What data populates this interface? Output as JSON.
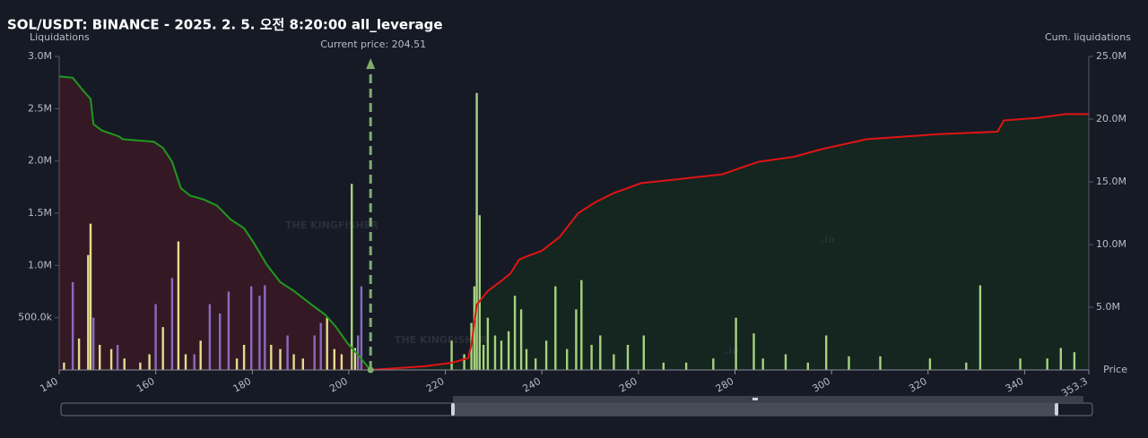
{
  "chart_data": {
    "type": "bar",
    "title": "SOL/USDT: BINANCE - 2025. 2. 5. 오전 8:20:00 all_leverage",
    "y_label": "Liquidations",
    "y2_label": "Cum. liquidations",
    "x_label": "Price",
    "watermark": "THE KINGFISHER",
    "watermark_suffix": ".io",
    "current_price": {
      "value": 204.51,
      "label": "Current price: 204.51"
    },
    "xlim": [
      140,
      353.3
    ],
    "xticks": [
      140,
      160,
      180,
      200,
      220,
      240,
      260,
      280,
      300,
      320,
      340,
      353.3
    ],
    "ylim": [
      0,
      3000000
    ],
    "yticks": [
      {
        "value": 500000,
        "label": "500.0k"
      },
      {
        "value": 1000000,
        "label": "1.0M"
      },
      {
        "value": 1500000,
        "label": "1.5M"
      },
      {
        "value": 2000000,
        "label": "2.0M"
      },
      {
        "value": 2500000,
        "label": "2.5M"
      },
      {
        "value": 3000000,
        "label": "3.0M"
      }
    ],
    "y2lim": [
      0,
      25000000
    ],
    "y2ticks": [
      {
        "value": 5000000,
        "label": "5.0M"
      },
      {
        "value": 10000000,
        "label": "10.0M"
      },
      {
        "value": 15000000,
        "label": "15.0M"
      },
      {
        "value": 20000000,
        "label": "20.0M"
      },
      {
        "value": 25000000,
        "label": "25.0M"
      }
    ],
    "grid": false,
    "series": [
      {
        "color": "#e3dd8c",
        "x": [
          141,
          144.1,
          146,
          146.5,
          148.4,
          150.8,
          153.5,
          156.8,
          158.7,
          161.5,
          164.7,
          166.2,
          169.3,
          176.8,
          178.3,
          183.9,
          185.8,
          188.6,
          190.5,
          195.5,
          197,
          198.5,
          201.3
        ],
        "values": [
          70000,
          300000,
          1100000,
          1400000,
          240000,
          200000,
          110000,
          70000,
          150000,
          410000,
          1230000,
          150000,
          280000,
          110000,
          240000,
          240000,
          200000,
          150000,
          110000,
          500000,
          200000,
          150000,
          210000
        ]
      },
      {
        "color": "#8a6bbd",
        "x": [
          142.8,
          147.1,
          152.1,
          160,
          163.4,
          168,
          171.2,
          173.3,
          175.1,
          179.8,
          181.5,
          182.6,
          187.3,
          192.9,
          194.2,
          201.9,
          202.6
        ],
        "values": [
          840000,
          500000,
          240000,
          630000,
          880000,
          150000,
          630000,
          540000,
          750000,
          800000,
          710000,
          810000,
          330000,
          330000,
          450000,
          330000,
          800000
        ]
      },
      {
        "color": "#a6d27e",
        "x": [
          200.6,
          221.3,
          223.9,
          225.4,
          226,
          226.5,
          227.1,
          227.9,
          228.8,
          230.3,
          231.6,
          233.1,
          234.4,
          235.7,
          236.8,
          238.7,
          240.9,
          242.8,
          245.2,
          247.1,
          248.2,
          250.3,
          252.1,
          254.9,
          257.8,
          261.1,
          265.2,
          269.9,
          275.5,
          280.2,
          283.9,
          285.8,
          290.5,
          295.1,
          298.9,
          303.6,
          310.1,
          320.4,
          327.9,
          330.8,
          339.1,
          344.7,
          347.5,
          350.3
        ],
        "values": [
          1780000,
          280000,
          150000,
          450000,
          800000,
          2650000,
          1480000,
          240000,
          500000,
          330000,
          280000,
          370000,
          710000,
          580000,
          200000,
          110000,
          280000,
          800000,
          200000,
          580000,
          860000,
          240000,
          330000,
          150000,
          240000,
          330000,
          70000,
          70000,
          110000,
          500000,
          350000,
          110000,
          150000,
          70000,
          330000,
          130000,
          130000,
          110000,
          70000,
          810000,
          110000,
          110000,
          210000,
          170000
        ]
      },
      {
        "type": "line",
        "axis": "y2",
        "color": "#1e9a1e",
        "fill": "#3a1a24",
        "x": [
          140,
          142.8,
          144.7,
          146.5,
          147.1,
          148.8,
          150.3,
          152.5,
          153.1,
          159.6,
          161.5,
          163.4,
          165.2,
          167.1,
          169.9,
          172.7,
          175.5,
          178.3,
          180.2,
          183,
          185.8,
          188.6,
          192.3,
          195.1,
          197.4,
          199.8,
          201.7,
          203.6,
          204.51
        ],
        "values": [
          23400000,
          23300000,
          22400000,
          21600000,
          19600000,
          19100000,
          18900000,
          18600000,
          18400000,
          18200000,
          17700000,
          16600000,
          14500000,
          13900000,
          13600000,
          13100000,
          12000000,
          11300000,
          10200000,
          8400000,
          7000000,
          6300000,
          5200000,
          4400000,
          3400000,
          2100000,
          1300000,
          400000,
          0
        ]
      },
      {
        "type": "line",
        "axis": "y2",
        "color": "#e01414",
        "fill": "#15281f",
        "x": [
          204.51,
          210.1,
          215.7,
          221.3,
          224.7,
          225.4,
          226.5,
          228.8,
          231.6,
          233.5,
          235.3,
          237.2,
          240,
          243.7,
          247.5,
          251.2,
          254.9,
          260.6,
          268,
          277.4,
          281.1,
          284.9,
          292.3,
          297.9,
          307.3,
          314.8,
          322.2,
          334.4,
          335.7,
          342.8,
          348.4,
          353.3
        ],
        "values": [
          0,
          140000,
          290000,
          570000,
          930000,
          2000000,
          5200000,
          6300000,
          7100000,
          7700000,
          8800000,
          9100000,
          9500000,
          10600000,
          12500000,
          13400000,
          14100000,
          14900000,
          15200000,
          15600000,
          16100000,
          16600000,
          17000000,
          17600000,
          18400000,
          18600000,
          18800000,
          19000000,
          19900000,
          20100000,
          20400000,
          20400000
        ]
      }
    ]
  }
}
